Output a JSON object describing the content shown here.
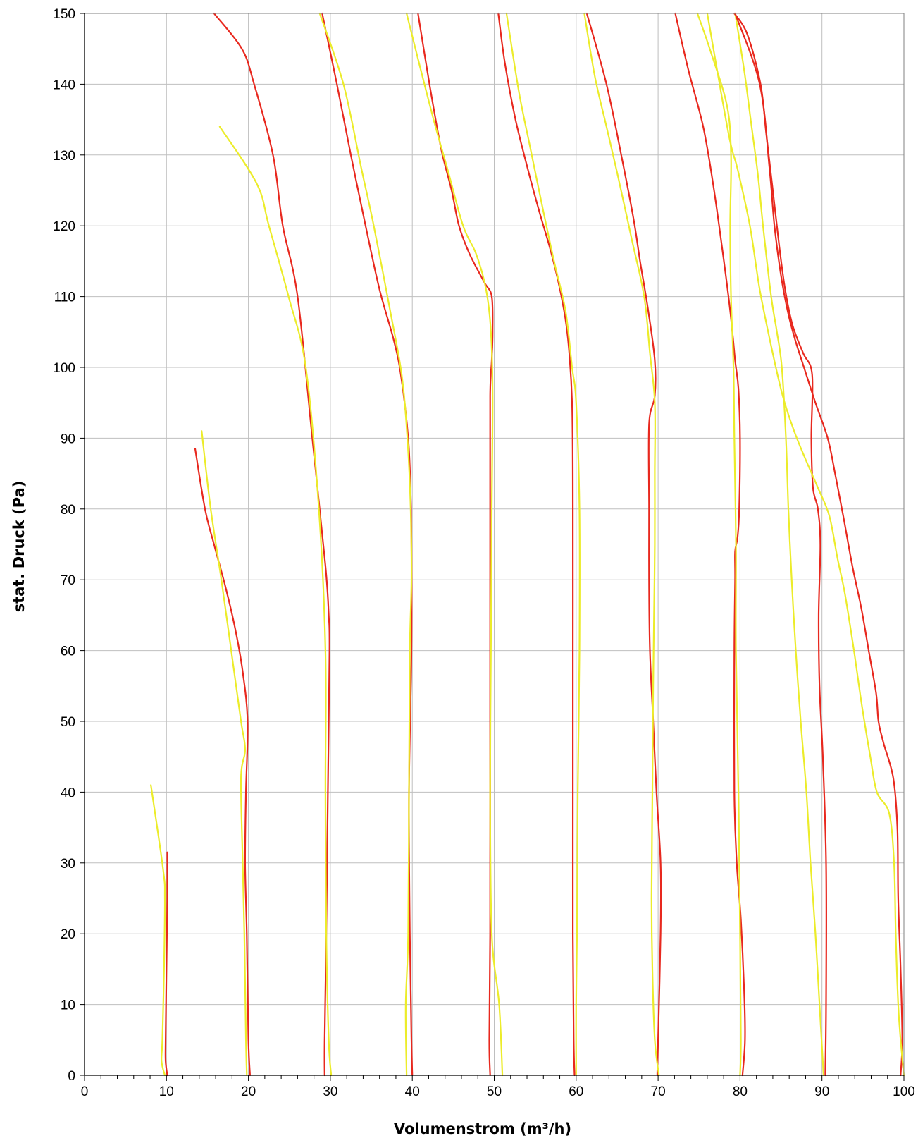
{
  "chart_data": {
    "type": "line",
    "title": "",
    "xlabel": "Volumenstrom (m³/h)",
    "ylabel": "stat. Druck (Pa)",
    "xlim": [
      0,
      100
    ],
    "ylim": [
      0,
      150
    ],
    "x_ticks": [
      0,
      10,
      20,
      30,
      40,
      50,
      60,
      70,
      80,
      90,
      100
    ],
    "y_ticks": [
      0,
      10,
      20,
      30,
      40,
      50,
      60,
      70,
      80,
      90,
      100,
      110,
      120,
      130,
      140,
      150
    ],
    "grid": true,
    "legend": "none",
    "colors": {
      "red": "#e8281e",
      "yellow": "#ecec2a"
    },
    "series": [
      {
        "color": "red",
        "points": [
          [
            10.1,
            0
          ],
          [
            9.9,
            2
          ],
          [
            9.9,
            5
          ],
          [
            10.0,
            15
          ],
          [
            10.1,
            25
          ],
          [
            10.1,
            31.5
          ]
        ]
      },
      {
        "color": "yellow",
        "points": [
          [
            9.8,
            0
          ],
          [
            9.4,
            2
          ],
          [
            9.5,
            5
          ],
          [
            9.7,
            15
          ],
          [
            9.8,
            25
          ],
          [
            9.6,
            29
          ],
          [
            8.1,
            41
          ]
        ]
      },
      {
        "color": "red",
        "points": [
          [
            20.2,
            0
          ],
          [
            20.0,
            5
          ],
          [
            19.8,
            20
          ],
          [
            19.6,
            30
          ],
          [
            19.7,
            40
          ],
          [
            19.9,
            50
          ],
          [
            19.3,
            57
          ],
          [
            18.4,
            63
          ],
          [
            17.2,
            69
          ],
          [
            15.8,
            75
          ],
          [
            14.7,
            80
          ],
          [
            13.5,
            88.5
          ]
        ]
      },
      {
        "color": "yellow",
        "points": [
          [
            19.8,
            0
          ],
          [
            19.7,
            5
          ],
          [
            19.5,
            20
          ],
          [
            19.3,
            30
          ],
          [
            19.1,
            42
          ],
          [
            19.6,
            46
          ],
          [
            19.1,
            50
          ],
          [
            17.9,
            60
          ],
          [
            16.7,
            70
          ],
          [
            15.4,
            80
          ],
          [
            14.3,
            91
          ]
        ]
      },
      {
        "color": "red",
        "points": [
          [
            29.3,
            0
          ],
          [
            29.3,
            5
          ],
          [
            29.5,
            20
          ],
          [
            29.7,
            40
          ],
          [
            29.9,
            60
          ],
          [
            29.8,
            65
          ],
          [
            29.4,
            72
          ],
          [
            27.8,
            90
          ],
          [
            26.0,
            110
          ],
          [
            24.2,
            120
          ],
          [
            23.0,
            130
          ],
          [
            20.7,
            140
          ],
          [
            19.2,
            145
          ],
          [
            15.8,
            150
          ]
        ]
      },
      {
        "color": "yellow",
        "points": [
          [
            30.1,
            0
          ],
          [
            29.8,
            5
          ],
          [
            29.5,
            20
          ],
          [
            29.4,
            40
          ],
          [
            29.4,
            60
          ],
          [
            28.6,
            80
          ],
          [
            27.0,
            100
          ],
          [
            24.9,
            110
          ],
          [
            22.5,
            120
          ],
          [
            21.0,
            126
          ],
          [
            16.5,
            134
          ]
        ]
      },
      {
        "color": "red",
        "points": [
          [
            40.0,
            0
          ],
          [
            39.9,
            5
          ],
          [
            39.7,
            20
          ],
          [
            39.6,
            40
          ],
          [
            39.9,
            60
          ],
          [
            39.9,
            75
          ],
          [
            39.8,
            82
          ],
          [
            39.5,
            90
          ],
          [
            38.6,
            99
          ],
          [
            37.7,
            104
          ],
          [
            36.0,
            111
          ],
          [
            34.3,
            120
          ],
          [
            32.5,
            130
          ],
          [
            30.8,
            140
          ],
          [
            29.0,
            150
          ]
        ]
      },
      {
        "color": "yellow",
        "points": [
          [
            39.3,
            0
          ],
          [
            39.2,
            10
          ],
          [
            39.5,
            20
          ],
          [
            39.6,
            40
          ],
          [
            39.7,
            60
          ],
          [
            39.9,
            70
          ],
          [
            39.8,
            80
          ],
          [
            39.4,
            90
          ],
          [
            38.7,
            99
          ],
          [
            37.3,
            108
          ],
          [
            35.3,
            120
          ],
          [
            33.8,
            128
          ],
          [
            31.6,
            140
          ],
          [
            28.7,
            150
          ]
        ]
      },
      {
        "color": "red",
        "points": [
          [
            49.5,
            0
          ],
          [
            49.4,
            5
          ],
          [
            49.5,
            20
          ],
          [
            49.5,
            40
          ],
          [
            49.5,
            60
          ],
          [
            49.5,
            80
          ],
          [
            49.5,
            96
          ],
          [
            49.7,
            101
          ],
          [
            49.8,
            105
          ],
          [
            49.7,
            110
          ],
          [
            48.8,
            112
          ],
          [
            47.0,
            116
          ],
          [
            45.7,
            120
          ],
          [
            44.8,
            125
          ],
          [
            43.5,
            131
          ],
          [
            42.1,
            140
          ],
          [
            40.7,
            150
          ]
        ]
      },
      {
        "color": "yellow",
        "points": [
          [
            51.0,
            0
          ],
          [
            50.6,
            10
          ],
          [
            49.7,
            20
          ],
          [
            49.5,
            40
          ],
          [
            49.6,
            60
          ],
          [
            49.7,
            80
          ],
          [
            49.8,
            96
          ],
          [
            49.6,
            105
          ],
          [
            49.0,
            111
          ],
          [
            47.8,
            116
          ],
          [
            46.2,
            120
          ],
          [
            44.3,
            128
          ],
          [
            42.6,
            135
          ],
          [
            40.6,
            144
          ],
          [
            39.3,
            150
          ]
        ]
      },
      {
        "color": "red",
        "points": [
          [
            59.8,
            0
          ],
          [
            59.7,
            5
          ],
          [
            59.6,
            20
          ],
          [
            59.6,
            40
          ],
          [
            59.6,
            60
          ],
          [
            59.6,
            80
          ],
          [
            59.5,
            95
          ],
          [
            59.0,
            104
          ],
          [
            58.2,
            110
          ],
          [
            57.0,
            116
          ],
          [
            55.5,
            122
          ],
          [
            54.1,
            128
          ],
          [
            52.6,
            135
          ],
          [
            51.3,
            143
          ],
          [
            50.5,
            150
          ]
        ]
      },
      {
        "color": "yellow",
        "points": [
          [
            60.0,
            0
          ],
          [
            60.0,
            10
          ],
          [
            60.1,
            20
          ],
          [
            60.2,
            40
          ],
          [
            60.4,
            60
          ],
          [
            60.4,
            80
          ],
          [
            60.0,
            95
          ],
          [
            59.5,
            100
          ],
          [
            58.7,
            108
          ],
          [
            57.3,
            115
          ],
          [
            56.0,
            122
          ],
          [
            54.4,
            131
          ],
          [
            53.0,
            139
          ],
          [
            51.5,
            150
          ]
        ]
      },
      {
        "color": "red",
        "points": [
          [
            69.9,
            0
          ],
          [
            70.0,
            5
          ],
          [
            70.3,
            20
          ],
          [
            70.3,
            30
          ],
          [
            69.8,
            40
          ],
          [
            69.4,
            50
          ],
          [
            69.0,
            60
          ],
          [
            68.9,
            70
          ],
          [
            68.9,
            80
          ],
          [
            68.9,
            92
          ],
          [
            69.6,
            96
          ],
          [
            69.6,
            101
          ],
          [
            68.8,
            108
          ],
          [
            67.8,
            115
          ],
          [
            67.0,
            121
          ],
          [
            65.5,
            130
          ],
          [
            63.7,
            140
          ],
          [
            61.3,
            150
          ]
        ]
      },
      {
        "color": "yellow",
        "points": [
          [
            70.1,
            0
          ],
          [
            69.6,
            5
          ],
          [
            69.3,
            15
          ],
          [
            69.2,
            25
          ],
          [
            69.3,
            40
          ],
          [
            69.4,
            55
          ],
          [
            69.5,
            65
          ],
          [
            69.6,
            75
          ],
          [
            69.6,
            85
          ],
          [
            69.6,
            95
          ],
          [
            69.0,
            102
          ],
          [
            68.3,
            110
          ],
          [
            66.8,
            118
          ],
          [
            65.1,
            127
          ],
          [
            63.7,
            134
          ],
          [
            62.3,
            141
          ],
          [
            61.0,
            150
          ]
        ]
      },
      {
        "color": "red",
        "points": [
          [
            80.3,
            0
          ],
          [
            80.6,
            5
          ],
          [
            80.5,
            12
          ],
          [
            80.1,
            22
          ],
          [
            79.6,
            30
          ],
          [
            79.3,
            40
          ],
          [
            79.3,
            60
          ],
          [
            79.4,
            70
          ],
          [
            79.4,
            74
          ],
          [
            79.7,
            76
          ],
          [
            79.9,
            80
          ],
          [
            80.0,
            90
          ],
          [
            79.8,
            97
          ],
          [
            79.4,
            101
          ],
          [
            78.8,
            108
          ],
          [
            77.8,
            117
          ],
          [
            76.7,
            126
          ],
          [
            75.5,
            134
          ],
          [
            73.7,
            142
          ],
          [
            72.1,
            150
          ]
        ]
      },
      {
        "color": "yellow",
        "points": [
          [
            80.0,
            0
          ],
          [
            80.1,
            5
          ],
          [
            80.0,
            20
          ],
          [
            79.8,
            40
          ],
          [
            79.5,
            60
          ],
          [
            79.5,
            75
          ],
          [
            79.3,
            90
          ],
          [
            79.2,
            100
          ],
          [
            78.9,
            110
          ],
          [
            78.8,
            120
          ],
          [
            78.9,
            130
          ],
          [
            78.4,
            137
          ],
          [
            76.3,
            145
          ],
          [
            74.8,
            150
          ]
        ]
      },
      {
        "color": "red",
        "points": [
          [
            90.4,
            0
          ],
          [
            90.5,
            10
          ],
          [
            90.5,
            30
          ],
          [
            90.1,
            45
          ],
          [
            89.7,
            55
          ],
          [
            89.6,
            65
          ],
          [
            89.8,
            75
          ],
          [
            89.5,
            80
          ],
          [
            88.9,
            83
          ],
          [
            88.7,
            90
          ],
          [
            88.8,
            99
          ],
          [
            87.7,
            102
          ],
          [
            86.4,
            106
          ],
          [
            85.5,
            111
          ],
          [
            84.8,
            117
          ],
          [
            84.0,
            125
          ],
          [
            83.2,
            133
          ],
          [
            82.5,
            140
          ],
          [
            80.9,
            147
          ],
          [
            79.3,
            150
          ]
        ]
      },
      {
        "color": "yellow",
        "points": [
          [
            90.2,
            0
          ],
          [
            89.7,
            10
          ],
          [
            89.2,
            20
          ],
          [
            88.6,
            30
          ],
          [
            88.1,
            40
          ],
          [
            87.4,
            50
          ],
          [
            86.8,
            60
          ],
          [
            86.3,
            70
          ],
          [
            85.9,
            80
          ],
          [
            85.6,
            90
          ],
          [
            85.1,
            100
          ],
          [
            84.5,
            105
          ],
          [
            83.8,
            110
          ],
          [
            82.8,
            120
          ],
          [
            82.2,
            127
          ],
          [
            81.3,
            135
          ],
          [
            80.5,
            142
          ],
          [
            79.4,
            150
          ]
        ]
      },
      {
        "color": "red",
        "points": [
          [
            99.6,
            0
          ],
          [
            99.8,
            5
          ],
          [
            99.6,
            15
          ],
          [
            99.3,
            25
          ],
          [
            99.2,
            35
          ],
          [
            98.7,
            42
          ],
          [
            97.5,
            47
          ],
          [
            96.9,
            50
          ],
          [
            96.6,
            54
          ],
          [
            95.7,
            60
          ],
          [
            94.8,
            66
          ],
          [
            93.7,
            72
          ],
          [
            92.6,
            79
          ],
          [
            91.6,
            85
          ],
          [
            90.7,
            90
          ],
          [
            89.2,
            95
          ],
          [
            87.8,
            100
          ],
          [
            86.7,
            104
          ],
          [
            85.8,
            108
          ],
          [
            85.0,
            113
          ],
          [
            84.2,
            120
          ],
          [
            83.6,
            128
          ],
          [
            82.4,
            140
          ],
          [
            79.4,
            150
          ]
        ]
      },
      {
        "color": "yellow",
        "points": [
          [
            100.0,
            0
          ],
          [
            99.6,
            5
          ],
          [
            99.3,
            10
          ],
          [
            99.0,
            20
          ],
          [
            98.8,
            30
          ],
          [
            98.2,
            37
          ],
          [
            96.7,
            40
          ],
          [
            95.9,
            45
          ],
          [
            94.9,
            52
          ],
          [
            93.9,
            60
          ],
          [
            92.8,
            68
          ],
          [
            91.9,
            73
          ],
          [
            90.9,
            79
          ],
          [
            89.5,
            83
          ],
          [
            88.0,
            87
          ],
          [
            86.6,
            91
          ],
          [
            85.2,
            96
          ],
          [
            83.8,
            103
          ],
          [
            82.4,
            111
          ],
          [
            81.2,
            120
          ],
          [
            79.7,
            128
          ],
          [
            78.6,
            133
          ],
          [
            76.0,
            150
          ]
        ]
      }
    ]
  }
}
